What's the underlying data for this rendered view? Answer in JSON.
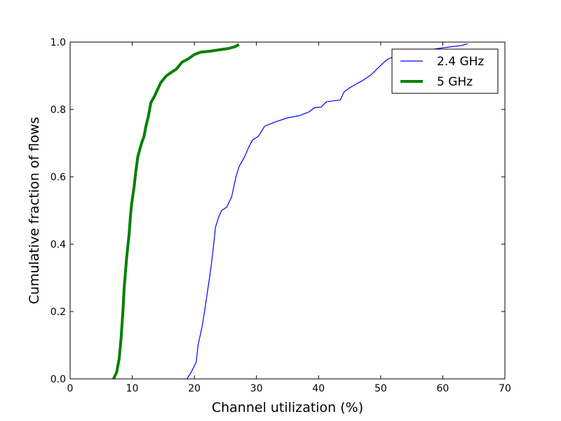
{
  "chart_data": {
    "type": "line",
    "title": "",
    "xlabel": "Channel utilization (%)",
    "ylabel": "Cumulative fraction of flows",
    "xlim": [
      0,
      70
    ],
    "ylim": [
      0.0,
      1.0
    ],
    "xticks": [
      "0",
      "10",
      "20",
      "30",
      "40",
      "50",
      "60",
      "70"
    ],
    "yticks": [
      "0.0",
      "0.2",
      "0.4",
      "0.6",
      "0.8",
      "1.0"
    ],
    "grid": false,
    "legend_position": "top-right",
    "series": [
      {
        "name": "2.4 GHz",
        "color": "#0000ff",
        "line_width": "thin",
        "x": [
          18.8,
          19.5,
          20.3,
          20.6,
          21.3,
          21.8,
          22.2,
          22.6,
          23.0,
          23.4,
          23.9,
          24.4,
          25.2,
          26.0,
          26.7,
          27.2,
          28.1,
          28.8,
          29.4,
          30.3,
          31.3,
          33.0,
          35.0,
          37.0,
          38.5,
          39.3,
          40.4,
          41.3,
          43.5,
          44.1,
          45.0,
          46.0,
          47.0,
          48.4,
          49.4,
          50.4,
          51.2,
          53.0,
          57.0,
          60.0,
          63.0,
          64.0
        ],
        "y": [
          0.0,
          0.02,
          0.05,
          0.1,
          0.16,
          0.22,
          0.27,
          0.32,
          0.38,
          0.45,
          0.48,
          0.5,
          0.51,
          0.54,
          0.6,
          0.63,
          0.66,
          0.69,
          0.71,
          0.72,
          0.75,
          0.763,
          0.775,
          0.782,
          0.793,
          0.805,
          0.807,
          0.823,
          0.828,
          0.852,
          0.864,
          0.875,
          0.885,
          0.902,
          0.92,
          0.938,
          0.95,
          0.963,
          0.975,
          0.983,
          0.99,
          0.995
        ]
      },
      {
        "name": "5 GHz",
        "color": "#008000",
        "line_width": "thick",
        "x": [
          7.0,
          7.5,
          7.9,
          8.2,
          8.5,
          8.7,
          9.1,
          9.5,
          9.7,
          9.9,
          10.3,
          10.6,
          10.9,
          11.5,
          11.9,
          12.2,
          12.6,
          13.0,
          13.6,
          14.1,
          14.6,
          15.5,
          16.3,
          17.1,
          18.0,
          19.0,
          20.0,
          21.0,
          22.5,
          24.0,
          25.5,
          26.5,
          27.2
        ],
        "y": [
          0.0,
          0.02,
          0.06,
          0.12,
          0.2,
          0.27,
          0.36,
          0.43,
          0.48,
          0.52,
          0.57,
          0.62,
          0.66,
          0.7,
          0.72,
          0.75,
          0.78,
          0.82,
          0.84,
          0.86,
          0.88,
          0.9,
          0.91,
          0.92,
          0.94,
          0.95,
          0.963,
          0.97,
          0.973,
          0.977,
          0.981,
          0.986,
          0.993
        ]
      }
    ]
  }
}
